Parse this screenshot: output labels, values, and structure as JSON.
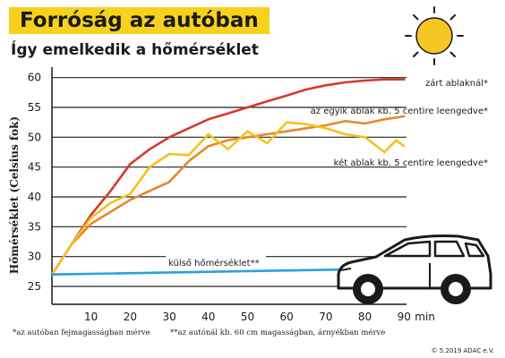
{
  "header": {
    "title": "Forróság az autóban",
    "subtitle": "Így emelkedik a hőmérséklet"
  },
  "colors": {
    "title_background": "#f6d21e",
    "closed_windows": "#d63a2c",
    "one_window": "#e8862a",
    "two_windows": "#f5c11e",
    "outside": "#2aa0e0",
    "sun": "#f6c623",
    "gridline": "#222222"
  },
  "icons": [
    "sun-icon",
    "car-icon"
  ],
  "footnotes": {
    "left": "*az autóban fejmagasságban mérve",
    "right": "**az autónál kb. 60 cm magasságban, árnyékban mérve",
    "copyright": "© 5.2019 ADAC e.V."
  },
  "chart_data": {
    "type": "line",
    "ylabel": "Hőmérséklet (Celsius fok)",
    "xlabel": "",
    "x_unit_label": "min",
    "xlim": [
      0,
      92
    ],
    "ylim": [
      22,
      61
    ],
    "x_ticks": [
      10,
      20,
      30,
      40,
      50,
      60,
      70,
      80,
      90
    ],
    "x_tick_labels": [
      "10",
      "20",
      "30",
      "40",
      "50",
      "60",
      "70",
      "80",
      "90"
    ],
    "y_ticks": [
      25,
      30,
      35,
      40,
      45,
      50,
      55,
      60
    ],
    "y_tick_labels": [
      "25",
      "30",
      "35",
      "40",
      "45",
      "50",
      "55",
      "60"
    ],
    "grid": "horizontal",
    "legend": "inline labels at the right end of each line",
    "series": [
      {
        "name": "zárt ablaknál*",
        "color": "#d63a2c",
        "points": [
          [
            0,
            27
          ],
          [
            5,
            32
          ],
          [
            10,
            37
          ],
          [
            15,
            41
          ],
          [
            20,
            45.5
          ],
          [
            25,
            48
          ],
          [
            30,
            50
          ],
          [
            35,
            51.5
          ],
          [
            40,
            53
          ],
          [
            45,
            54
          ],
          [
            50,
            55
          ],
          [
            55,
            56
          ],
          [
            60,
            57
          ],
          [
            65,
            58
          ],
          [
            70,
            58.7
          ],
          [
            75,
            59.2
          ],
          [
            80,
            59.5
          ],
          [
            85,
            59.7
          ],
          [
            90,
            59.7
          ]
        ]
      },
      {
        "name": "az egyik ablak kb. 5 centire leengedve*",
        "color": "#e8862a",
        "points": [
          [
            0,
            27
          ],
          [
            5,
            32
          ],
          [
            10,
            35.5
          ],
          [
            15,
            37.5
          ],
          [
            20,
            39.5
          ],
          [
            25,
            41
          ],
          [
            30,
            42.5
          ],
          [
            35,
            46
          ],
          [
            40,
            48.5
          ],
          [
            45,
            49.5
          ],
          [
            50,
            50
          ],
          [
            55,
            50.5
          ],
          [
            60,
            51
          ],
          [
            65,
            51.5
          ],
          [
            70,
            52
          ],
          [
            75,
            52.7
          ],
          [
            80,
            52.3
          ],
          [
            85,
            53
          ],
          [
            90,
            53.5
          ]
        ]
      },
      {
        "name": "két ablak kb. 5 centire leengedve*",
        "color": "#f5c11e",
        "points": [
          [
            0,
            27
          ],
          [
            5,
            32
          ],
          [
            10,
            36.5
          ],
          [
            15,
            39
          ],
          [
            20,
            40.5
          ],
          [
            25,
            45
          ],
          [
            30,
            47.2
          ],
          [
            35,
            47
          ],
          [
            40,
            50.5
          ],
          [
            45,
            48
          ],
          [
            50,
            51
          ],
          [
            55,
            49
          ],
          [
            60,
            52.5
          ],
          [
            65,
            52.2
          ],
          [
            70,
            51.5
          ],
          [
            75,
            50.5
          ],
          [
            80,
            50
          ],
          [
            85,
            47.5
          ],
          [
            88,
            49.5
          ],
          [
            90,
            48.5
          ]
        ]
      },
      {
        "name": "külső hőmérséklet**",
        "color": "#2aa0e0",
        "points": [
          [
            0,
            27
          ],
          [
            90,
            28
          ]
        ]
      }
    ]
  }
}
